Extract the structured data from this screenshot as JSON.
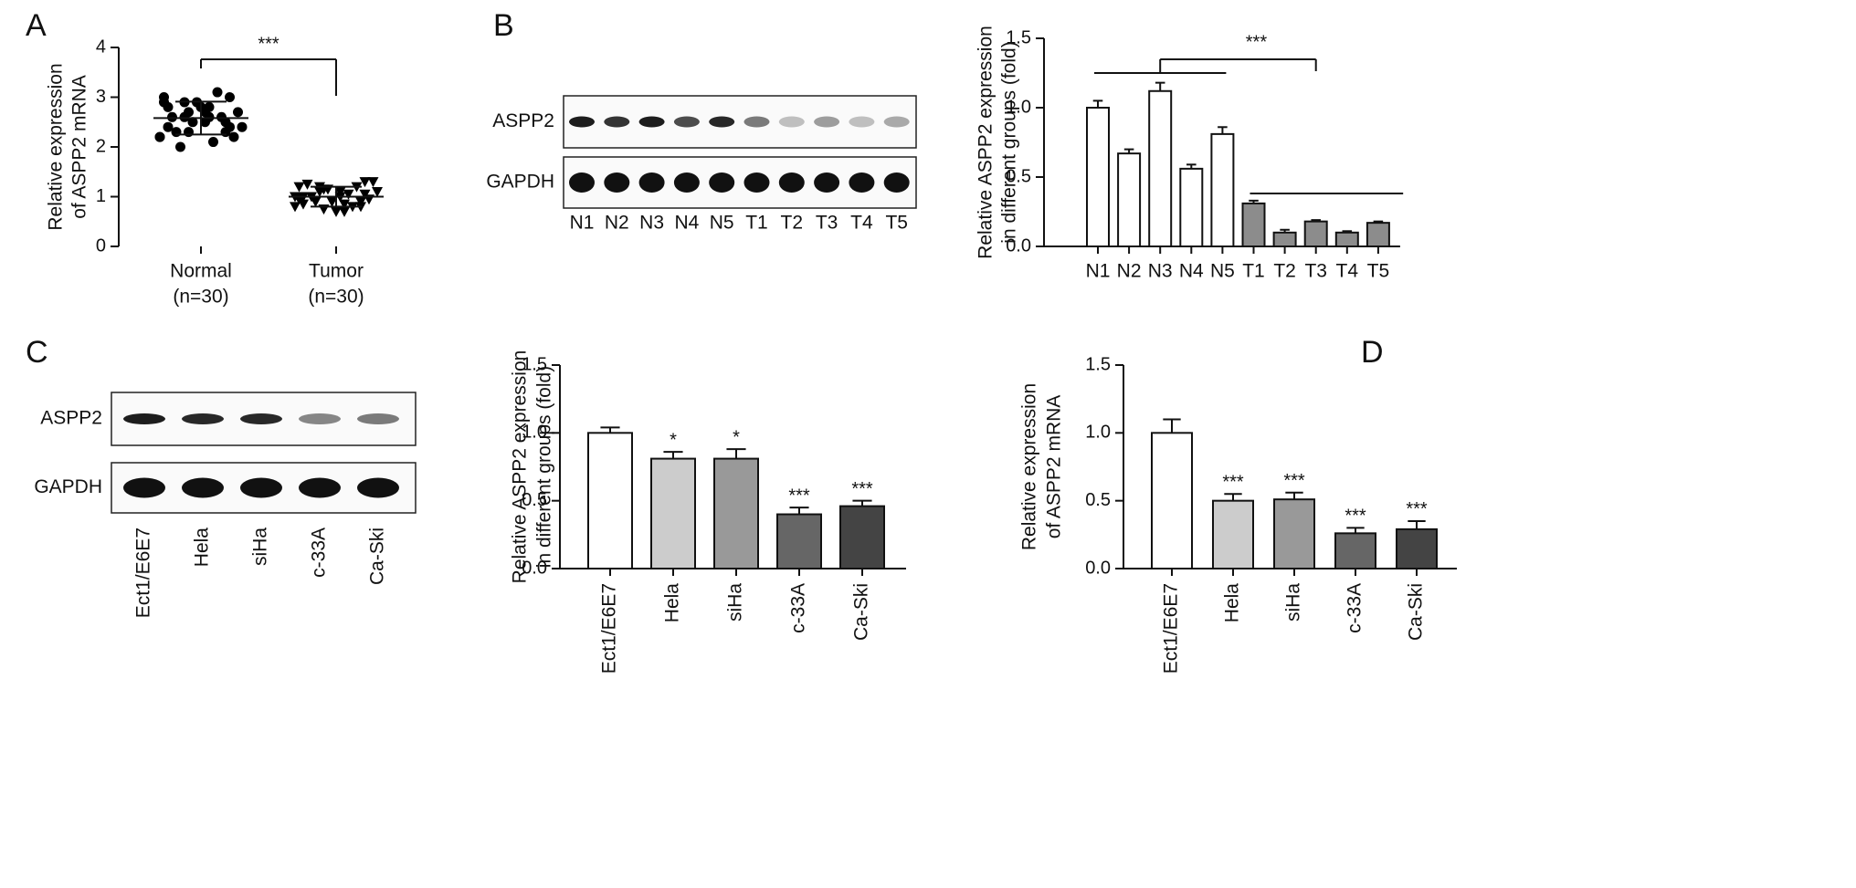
{
  "panels": [
    "A",
    "B",
    "C",
    "D"
  ],
  "blots": [
    {
      "rows": [
        "ASPP2",
        "GAPDH"
      ],
      "lanes": [
        "N1",
        "N2",
        "N3",
        "N4",
        "N5",
        "T1",
        "T2",
        "T3",
        "T4",
        "T5"
      ],
      "band_intensity": [
        [
          0.95,
          0.85,
          0.95,
          0.75,
          0.9,
          0.55,
          0.25,
          0.4,
          0.25,
          0.35
        ],
        [
          1,
          1,
          1,
          1,
          1,
          1,
          1,
          1,
          1,
          1
        ]
      ]
    },
    {
      "rows": [
        "ASPP2",
        "GAPDH"
      ],
      "lanes": [
        "Ect1/E6E7",
        "Hela",
        "siHa",
        "c-33A",
        "Ca-Ski"
      ],
      "band_intensity": [
        [
          0.95,
          0.9,
          0.9,
          0.5,
          0.55
        ],
        [
          1,
          1,
          1,
          1,
          1
        ]
      ]
    }
  ],
  "chart_data": [
    {
      "type": "scatter",
      "ylabel": [
        "Relative expression",
        "of ASPP2 mRNA"
      ],
      "categories": [
        "Normal",
        "Tumor"
      ],
      "category_notes": [
        "(n=30)",
        "(n=30)"
      ],
      "series": [
        {
          "name": "Normal",
          "marker": "circle",
          "color": "#000000",
          "mean": 2.58,
          "sd": 0.33,
          "values": [
            2.2,
            2.3,
            2.5,
            2.6,
            2.9,
            3.0,
            2.8,
            2.7,
            2.4,
            2.2,
            2.1,
            2.5,
            2.6,
            2.7,
            3.1,
            2.9,
            2.3,
            2.4,
            2.6,
            2.8,
            2.0,
            2.2,
            2.5,
            2.7,
            2.9,
            3.0,
            2.4,
            2.6,
            2.3,
            2.8
          ]
        },
        {
          "name": "Tumor",
          "marker": "triangle-down",
          "color": "#000000",
          "mean": 1.0,
          "sd": 0.2,
          "values": [
            0.8,
            0.9,
            1.0,
            1.1,
            1.2,
            1.3,
            0.7,
            0.75,
            0.85,
            0.95,
            1.05,
            1.15,
            1.25,
            1.3,
            0.8,
            0.9,
            1.0,
            1.1,
            1.2,
            0.7,
            0.9,
            1.0,
            0.8,
            1.1,
            1.2,
            0.95,
            1.05,
            0.85,
            1.15,
            1.0
          ]
        }
      ],
      "annotations": [
        {
          "text": "***"
        }
      ],
      "ylim": [
        0,
        4
      ],
      "yticks": [
        0,
        1,
        2,
        3,
        4
      ]
    },
    {
      "type": "bar",
      "ylabel": [
        "Relative ASPP2 expression",
        "in different groups (fold)"
      ],
      "categories": [
        "N1",
        "N2",
        "N3",
        "N4",
        "N5",
        "T1",
        "T2",
        "T3",
        "T4",
        "T5"
      ],
      "values": [
        1.0,
        0.67,
        1.12,
        0.56,
        0.81,
        0.31,
        0.1,
        0.18,
        0.1,
        0.17
      ],
      "errors": [
        0.05,
        0.03,
        0.06,
        0.03,
        0.05,
        0.02,
        0.02,
        0.01,
        0.01,
        0.01
      ],
      "colors": [
        "#ffffff",
        "#ffffff",
        "#ffffff",
        "#ffffff",
        "#ffffff",
        "#8c8c8c",
        "#8c8c8c",
        "#8c8c8c",
        "#8c8c8c",
        "#8c8c8c"
      ],
      "annotations": [
        {
          "text": "***"
        }
      ],
      "ylim": [
        0,
        1.5
      ],
      "yticks": [
        {
          "value": 0,
          "label": "0.0"
        },
        {
          "value": 0.5,
          "label": "0.5"
        },
        {
          "value": 1,
          "label": "1.0"
        },
        {
          "value": 1.5,
          "label": "1.5"
        }
      ]
    },
    {
      "type": "bar",
      "ylabel": [
        "Relative ASPP2 expression",
        "in different groups (fold)"
      ],
      "categories": [
        "Ect1/E6E7",
        "Hela",
        "siHa",
        "c-33A",
        "Ca-Ski"
      ],
      "values": [
        1.0,
        0.81,
        0.81,
        0.4,
        0.46
      ],
      "errors": [
        0.04,
        0.05,
        0.07,
        0.05,
        0.04
      ],
      "significance": [
        null,
        "*",
        "*",
        "***",
        "***"
      ],
      "colors": [
        "#ffffff",
        "#cccccc",
        "#999999",
        "#666666",
        "#444444"
      ],
      "ylim": [
        0,
        1.5
      ],
      "yticks": [
        {
          "value": 0,
          "label": "0.0"
        },
        {
          "value": 0.5,
          "label": "0.5"
        },
        {
          "value": 1,
          "label": "1.0"
        },
        {
          "value": 1.5,
          "label": "1.5"
        }
      ]
    },
    {
      "type": "bar",
      "ylabel": [
        "Relative expression",
        "of ASPP2 mRNA"
      ],
      "categories": [
        "Ect1/E6E7",
        "Hela",
        "siHa",
        "c-33A",
        "Ca-Ski"
      ],
      "values": [
        1.0,
        0.5,
        0.51,
        0.26,
        0.29
      ],
      "errors": [
        0.1,
        0.05,
        0.05,
        0.04,
        0.06
      ],
      "significance": [
        null,
        "***",
        "***",
        "***",
        "***"
      ],
      "colors": [
        "#ffffff",
        "#cccccc",
        "#999999",
        "#666666",
        "#444444"
      ],
      "ylim": [
        0,
        1.5
      ],
      "yticks": [
        {
          "value": 0,
          "label": "0.0"
        },
        {
          "value": 0.5,
          "label": "0.5"
        },
        {
          "value": 1,
          "label": "1.0"
        },
        {
          "value": 1.5,
          "label": "1.5"
        }
      ]
    }
  ]
}
